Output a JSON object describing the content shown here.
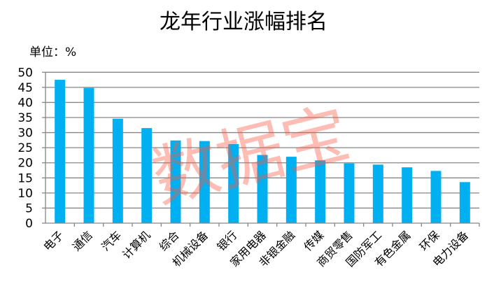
{
  "chart_data": {
    "type": "bar",
    "title": "龙年行业涨幅排名",
    "unit_label": "单位：%",
    "categories": [
      "电子",
      "通信",
      "汽车",
      "计算机",
      "综合",
      "机械设备",
      "银行",
      "家用电器",
      "非银金融",
      "传媒",
      "商贸零售",
      "国防军工",
      "有色金属",
      "环保",
      "电力设备"
    ],
    "values": [
      47.5,
      44.8,
      34.6,
      31.5,
      27.4,
      27.2,
      26.2,
      22.6,
      22.0,
      20.8,
      19.8,
      19.4,
      18.5,
      17.3,
      13.6
    ],
    "ylim": [
      0,
      50
    ],
    "yticks": [
      0,
      5,
      10,
      15,
      20,
      25,
      30,
      35,
      40,
      45,
      50
    ],
    "grid": true,
    "bar_color": "#00B0F0",
    "watermark": "数据宝"
  }
}
